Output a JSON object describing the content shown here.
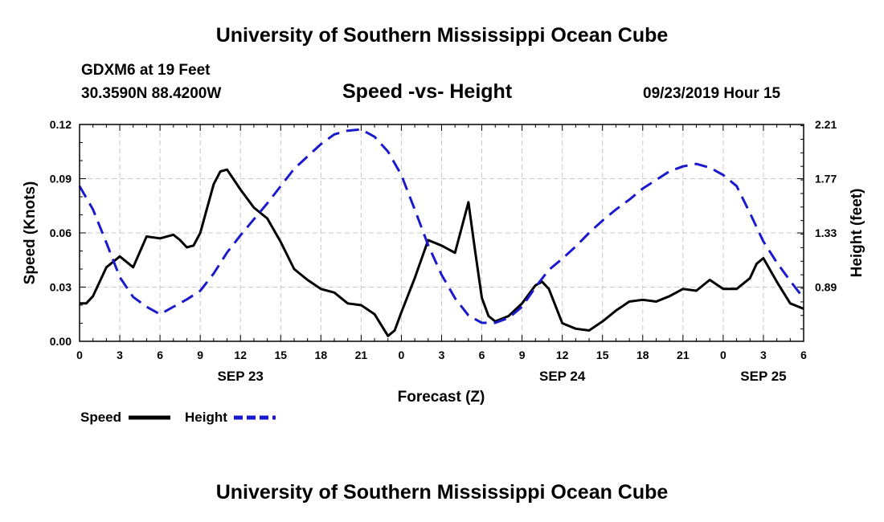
{
  "header": {
    "title": "University of Southern Mississippi Ocean Cube",
    "station": "GDXM6 at 19 Feet",
    "coords": "30.3590N 88.4200W",
    "chart_title": "Speed -vs- Height",
    "datetime": "09/23/2019 Hour 15"
  },
  "footer": {
    "title": "University of Southern Mississippi Ocean Cube"
  },
  "colors": {
    "speed": "#000000",
    "height": "#1a1acc",
    "grid": "#c8c8c8"
  },
  "chart_data": {
    "type": "line",
    "title": "Speed -vs- Height",
    "xlabel": "Forecast (Z)",
    "ylabel": "Speed (Knots)",
    "y2label": "Height (feet)",
    "x_range": [
      0,
      54
    ],
    "ylim": [
      0,
      0.12
    ],
    "y2lim": [
      0.45,
      2.21
    ],
    "x_ticks": [
      0,
      3,
      6,
      9,
      12,
      15,
      18,
      21,
      24,
      27,
      30,
      33,
      36,
      39,
      42,
      45,
      48,
      51,
      54
    ],
    "x_tick_labels": [
      "0",
      "3",
      "6",
      "9",
      "12",
      "15",
      "18",
      "21",
      "0",
      "3",
      "6",
      "9",
      "12",
      "15",
      "18",
      "21",
      "0",
      "3",
      "6"
    ],
    "y_ticks": [
      "0.00",
      "0.03",
      "0.06",
      "0.09",
      "0.12"
    ],
    "y2_ticks": [
      "0.89",
      "1.33",
      "1.77",
      "2.21"
    ],
    "date_labels": [
      {
        "x": 12,
        "label": "SEP 23"
      },
      {
        "x": 36,
        "label": "SEP 24"
      },
      {
        "x": 51,
        "label": "SEP 25"
      }
    ],
    "legend": {
      "placement": "bottom-left",
      "speed_label": "Speed",
      "height_label": "Height"
    },
    "series": [
      {
        "name": "Speed",
        "axis": "left",
        "style": "solid",
        "x": [
          0,
          0.5,
          1,
          2,
          3,
          4,
          5,
          6,
          7,
          7.5,
          8,
          8.5,
          9,
          10,
          10.5,
          11,
          12,
          13,
          14,
          15,
          16,
          17,
          18,
          19,
          20,
          21,
          22,
          23,
          23.5,
          24,
          25,
          26,
          27,
          28,
          29,
          29.5,
          30,
          30.5,
          31,
          32,
          33,
          34,
          34.5,
          35,
          36,
          37,
          38,
          39,
          40,
          41,
          42,
          43,
          44,
          45,
          46,
          47,
          48,
          49,
          50,
          50.5,
          51,
          52,
          53,
          54
        ],
        "values": [
          0.021,
          0.021,
          0.025,
          0.041,
          0.047,
          0.041,
          0.058,
          0.057,
          0.059,
          0.056,
          0.052,
          0.053,
          0.06,
          0.087,
          0.094,
          0.095,
          0.084,
          0.074,
          0.068,
          0.055,
          0.04,
          0.034,
          0.029,
          0.027,
          0.021,
          0.02,
          0.015,
          0.003,
          0.006,
          0.016,
          0.035,
          0.056,
          0.053,
          0.049,
          0.077,
          0.05,
          0.024,
          0.014,
          0.011,
          0.014,
          0.021,
          0.031,
          0.033,
          0.029,
          0.01,
          0.007,
          0.006,
          0.011,
          0.017,
          0.022,
          0.023,
          0.022,
          0.025,
          0.029,
          0.028,
          0.034,
          0.029,
          0.029,
          0.035,
          0.043,
          0.046,
          0.033,
          0.021,
          0.018
        ]
      },
      {
        "name": "Height",
        "axis": "right",
        "style": "dashed",
        "x": [
          0,
          1,
          2,
          3,
          4,
          5,
          6,
          7,
          8,
          9,
          10,
          11,
          12,
          13,
          14,
          15,
          16,
          17,
          18,
          19,
          20,
          21,
          22,
          23,
          24,
          25,
          26,
          27,
          28,
          29,
          30,
          31,
          32,
          33,
          34,
          35,
          36,
          37,
          38,
          39,
          40,
          41,
          42,
          43,
          44,
          45,
          46,
          47,
          48,
          49,
          50,
          51,
          52,
          53,
          54
        ],
        "values": [
          1.71,
          1.52,
          1.25,
          0.97,
          0.81,
          0.73,
          0.67,
          0.73,
          0.79,
          0.86,
          1.0,
          1.17,
          1.31,
          1.44,
          1.57,
          1.71,
          1.85,
          1.95,
          2.05,
          2.13,
          2.16,
          2.17,
          2.11,
          1.99,
          1.8,
          1.52,
          1.23,
          0.99,
          0.8,
          0.66,
          0.6,
          0.6,
          0.64,
          0.73,
          0.89,
          1.03,
          1.12,
          1.22,
          1.33,
          1.43,
          1.52,
          1.6,
          1.69,
          1.76,
          1.83,
          1.87,
          1.89,
          1.86,
          1.8,
          1.71,
          1.49,
          1.26,
          1.09,
          0.94,
          0.8
        ]
      }
    ]
  }
}
